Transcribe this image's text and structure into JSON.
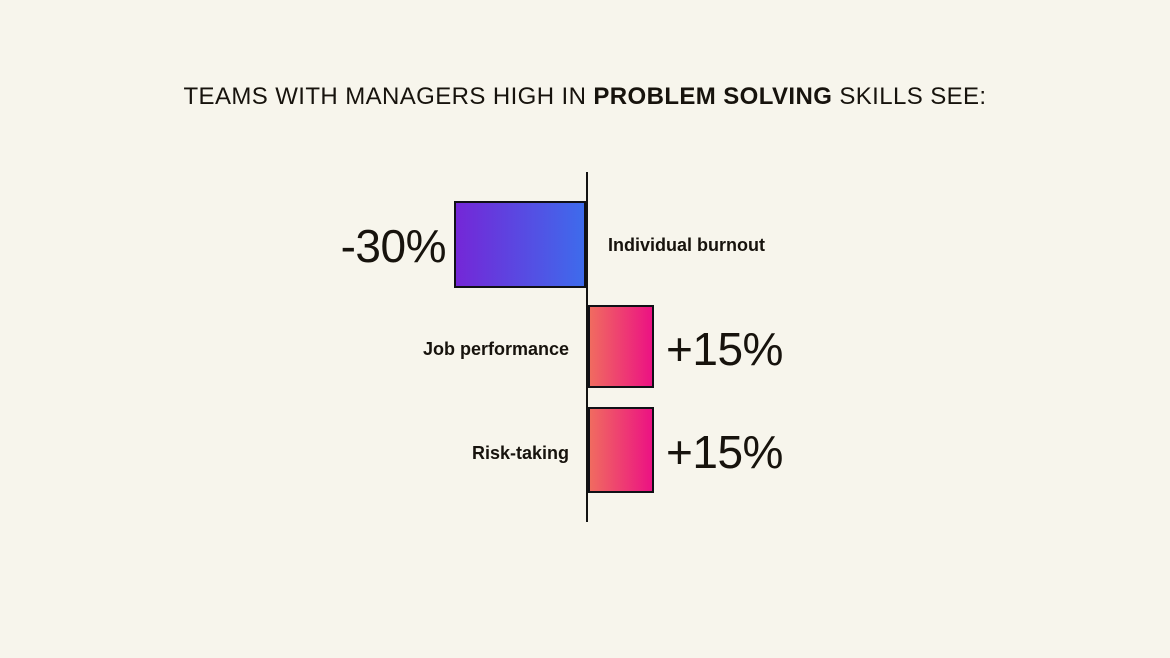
{
  "title": {
    "prefix": "TEAMS WITH MANAGERS HIGH IN ",
    "bold": "PROBLEM SOLVING",
    "suffix": " SKILLS SEE:"
  },
  "chart_data": {
    "type": "bar",
    "orientation": "horizontal-diverging",
    "title": "TEAMS WITH MANAGERS HIGH IN PROBLEM SOLVING SKILLS SEE:",
    "categories": [
      "Individual burnout",
      "Job performance",
      "Risk-taking"
    ],
    "values": [
      -30,
      15,
      15
    ],
    "value_labels": [
      "-30%",
      "+15%",
      "+15%"
    ],
    "xlabel": "",
    "ylabel": "",
    "xlim": [
      -30,
      15
    ],
    "baseline_value": 0,
    "grid": false,
    "legend": false,
    "axis_ticks": false,
    "colors": {
      "negative_gradient": [
        "#7427D7",
        "#3E6BEC"
      ],
      "positive_gradient": [
        "#F06B60",
        "#EC1283"
      ],
      "bar_border": "#101016",
      "axis_line": "#131313",
      "background": "#F7F5EC",
      "text": "#17130D"
    }
  }
}
